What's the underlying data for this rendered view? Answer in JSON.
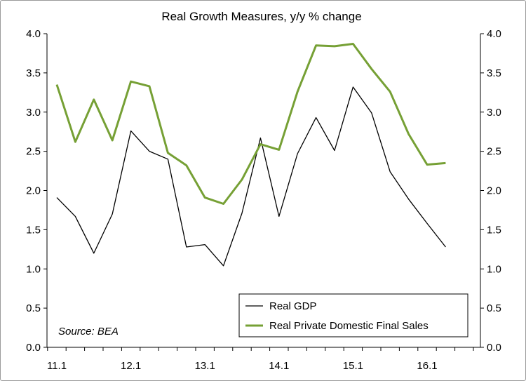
{
  "chart_data": {
    "type": "line",
    "title": "Real Growth Measures, y/y % change",
    "x_tick_labels": [
      "11.1",
      "12.1",
      "13.1",
      "14.1",
      "15.1",
      "16.1"
    ],
    "y_tick_labels": [
      "0.0",
      "0.5",
      "1.0",
      "1.5",
      "2.0",
      "2.5",
      "3.0",
      "3.5",
      "4.0"
    ],
    "ylim": [
      0,
      4
    ],
    "y_right_axis": true,
    "annotation": "Source: BEA",
    "legend_position": "bottom-right",
    "series": [
      {
        "name": "Real GDP",
        "color": "#000000",
        "values": [
          1.91,
          1.67,
          1.2,
          1.7,
          2.76,
          2.5,
          2.4,
          1.28,
          1.31,
          1.04,
          1.71,
          2.67,
          1.67,
          2.47,
          2.93,
          2.51,
          3.32,
          2.99,
          2.24,
          1.89,
          1.58,
          1.28
        ]
      },
      {
        "name": "Real Private Domestic Final Sales",
        "color": "#76a035",
        "values": [
          3.35,
          2.62,
          3.16,
          2.64,
          3.39,
          3.33,
          2.48,
          2.32,
          1.91,
          1.83,
          2.14,
          2.59,
          2.52,
          3.26,
          3.85,
          3.84,
          3.87,
          3.55,
          3.26,
          2.72,
          2.33,
          2.35
        ]
      }
    ]
  }
}
